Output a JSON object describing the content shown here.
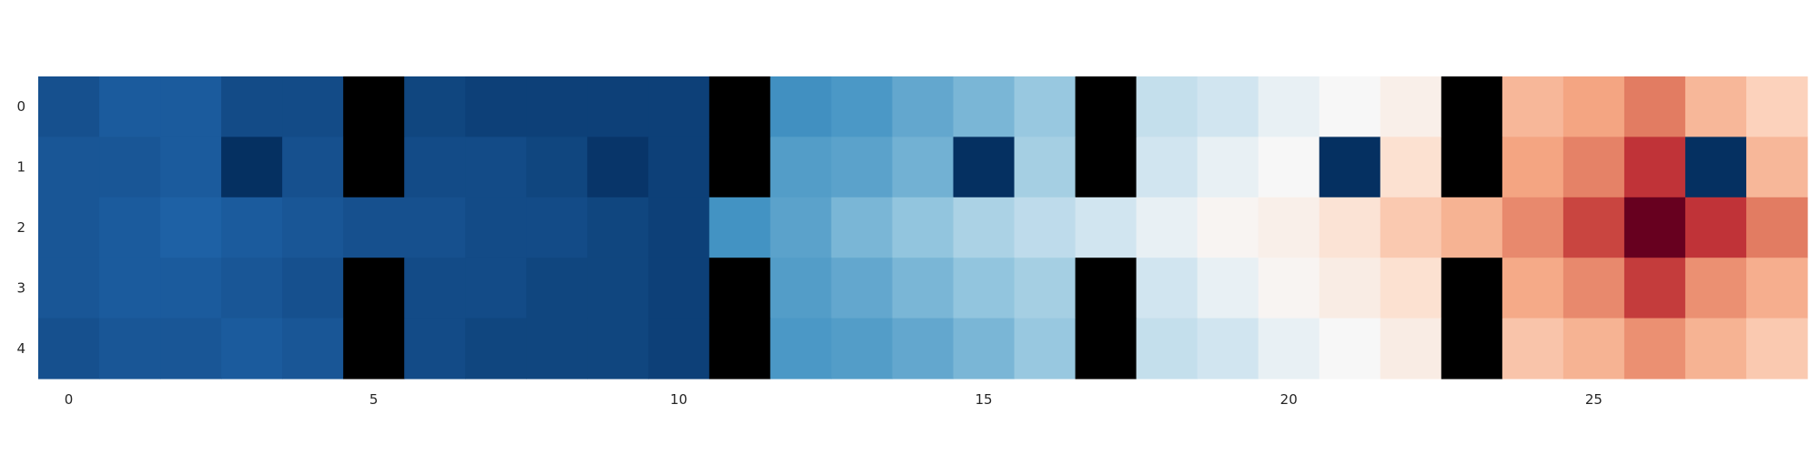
{
  "chart_data": {
    "type": "heatmap",
    "title": "",
    "xlabel": "",
    "ylabel": "",
    "rows": 5,
    "cols": 29,
    "xlim": [
      0,
      28
    ],
    "ylim": [
      0,
      4
    ],
    "x_tick_labels": [
      "0",
      "5",
      "10",
      "15",
      "20",
      "25"
    ],
    "x_tick_values": [
      0,
      5,
      10,
      15,
      20,
      25
    ],
    "y_tick_labels": [
      "0",
      "1",
      "2",
      "3",
      "4"
    ],
    "y_tick_values": [
      0,
      1,
      2,
      3,
      4
    ],
    "colormap": "RdBu_r",
    "vmin": 0,
    "vmax": 1,
    "missing_color": "#000000",
    "values": [
      [
        0.06,
        0.08,
        0.08,
        0.05,
        0.05,
        null,
        0.04,
        0.03,
        0.03,
        0.03,
        0.03,
        null,
        0.24,
        0.26,
        0.29,
        0.32,
        0.36,
        null,
        0.43,
        0.45,
        0.48,
        0.5,
        0.53,
        null,
        0.68,
        0.72,
        0.78,
        0.68,
        0.62
      ],
      [
        0.07,
        0.07,
        0.08,
        0.0,
        0.06,
        null,
        0.05,
        0.05,
        0.04,
        0.01,
        0.03,
        null,
        0.27,
        0.28,
        0.31,
        0.0,
        0.38,
        null,
        0.45,
        0.48,
        0.5,
        0.0,
        0.58,
        null,
        0.72,
        0.77,
        0.87,
        0.0,
        0.68
      ],
      [
        0.07,
        0.08,
        0.09,
        0.08,
        0.07,
        0.06,
        0.06,
        0.05,
        0.05,
        0.04,
        0.03,
        0.25,
        0.28,
        0.32,
        0.35,
        0.39,
        0.42,
        0.45,
        0.48,
        0.51,
        0.53,
        0.57,
        0.64,
        0.69,
        0.76,
        0.85,
        1.0,
        0.87,
        0.78
      ],
      [
        0.07,
        0.08,
        0.08,
        0.07,
        0.06,
        null,
        0.05,
        0.05,
        0.04,
        0.04,
        0.03,
        null,
        0.27,
        0.29,
        0.32,
        0.35,
        0.38,
        null,
        0.45,
        0.48,
        0.51,
        0.54,
        0.58,
        null,
        0.71,
        0.76,
        0.86,
        0.75,
        0.7
      ],
      [
        0.06,
        0.07,
        0.07,
        0.08,
        0.07,
        null,
        0.05,
        0.04,
        0.04,
        0.04,
        0.03,
        null,
        0.26,
        0.27,
        0.29,
        0.32,
        0.36,
        null,
        0.43,
        0.45,
        0.48,
        0.5,
        0.54,
        null,
        0.65,
        0.69,
        0.75,
        0.69,
        0.64
      ]
    ]
  }
}
